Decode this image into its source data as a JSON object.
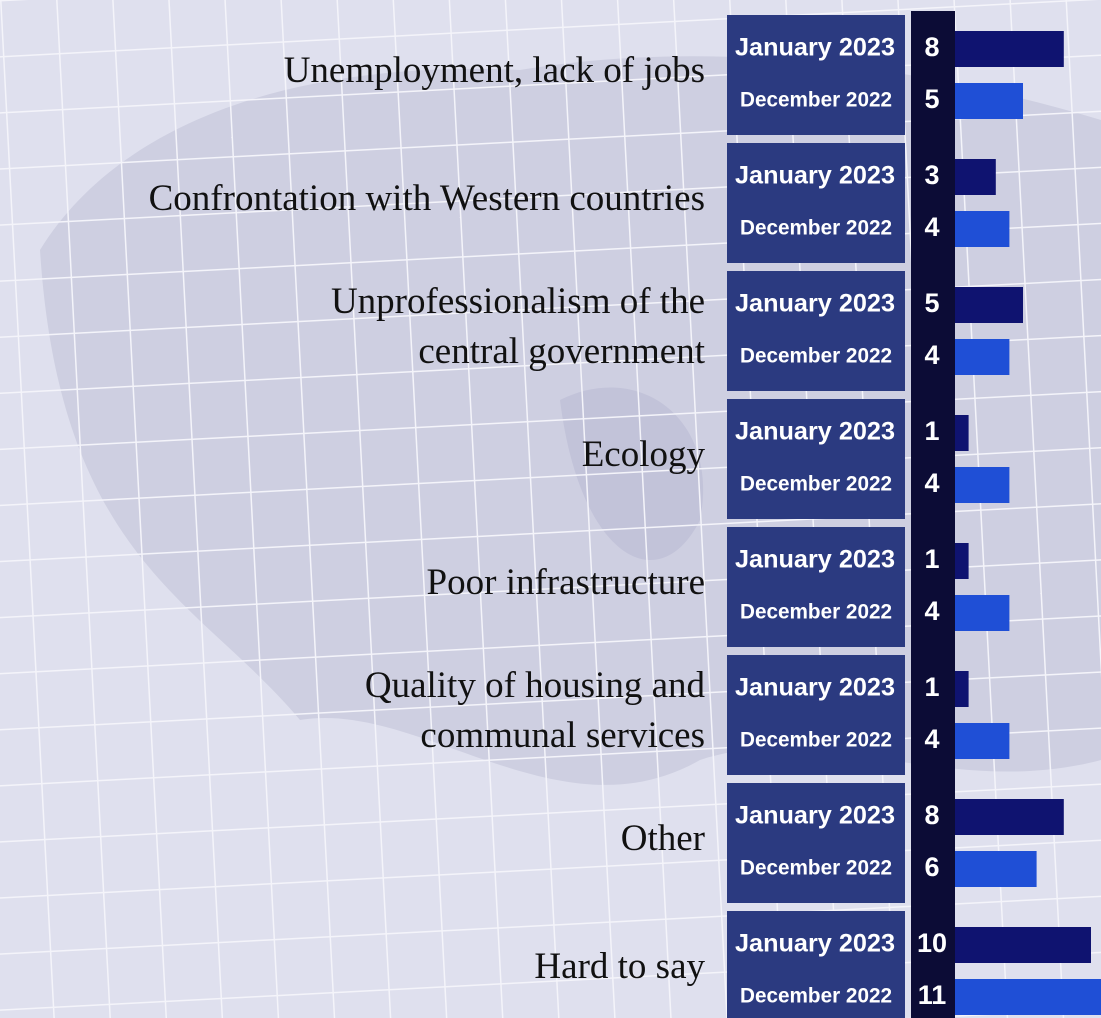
{
  "chart_data": {
    "type": "bar",
    "orientation": "horizontal",
    "categories": [
      "Unemployment, lack of jobs",
      "Confrontation with Western countries",
      "Unprofessionalism of the\ncentral government",
      "Ecology",
      "Poor infrastructure",
      "Quality of housing and\ncommunal services",
      "Other",
      "Hard to say"
    ],
    "series": [
      {
        "name": "January 2023",
        "color": "#0f1370",
        "values": [
          8,
          3,
          5,
          1,
          1,
          1,
          8,
          10
        ]
      },
      {
        "name": "December 2022",
        "color": "#1f4fd6",
        "values": [
          5,
          4,
          4,
          4,
          4,
          4,
          6,
          11
        ]
      }
    ]
  }
}
